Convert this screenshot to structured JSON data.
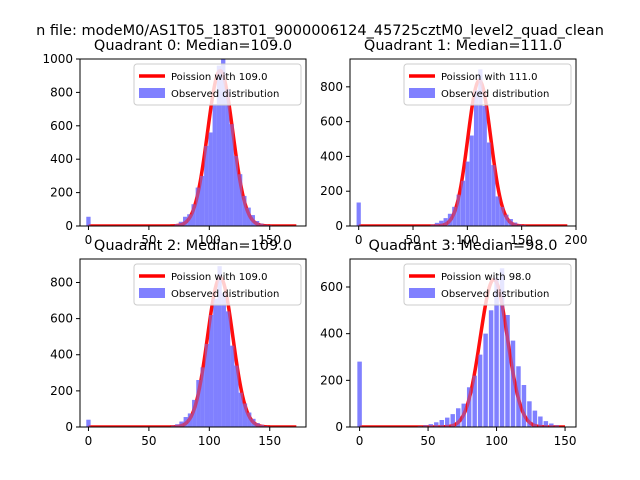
{
  "figure": {
    "suptitle": "n file: modeM0/AS1T05_183T01_9000006124_45725cztM0_level2_quad_clean"
  },
  "chart_data": [
    {
      "type": "histogram",
      "title": "Quadrant 0: Median=109.0",
      "xlim": [
        -7,
        180
      ],
      "ylim": [
        0,
        1000
      ],
      "xticks": [
        0,
        50,
        100,
        150
      ],
      "yticks": [
        0,
        200,
        400,
        600,
        800,
        1000
      ],
      "bin_width": 3.5,
      "outlier_bin": {
        "x": 0,
        "count": 55
      },
      "bins": [
        {
          "x": 73,
          "count": 12
        },
        {
          "x": 76.5,
          "count": 25
        },
        {
          "x": 80,
          "count": 55
        },
        {
          "x": 83.5,
          "count": 70
        },
        {
          "x": 87,
          "count": 130
        },
        {
          "x": 90.5,
          "count": 230
        },
        {
          "x": 94,
          "count": 300
        },
        {
          "x": 97.5,
          "count": 480
        },
        {
          "x": 101,
          "count": 560
        },
        {
          "x": 104.5,
          "count": 730
        },
        {
          "x": 108,
          "count": 960
        },
        {
          "x": 111.5,
          "count": 1000
        },
        {
          "x": 115,
          "count": 820
        },
        {
          "x": 118.5,
          "count": 610
        },
        {
          "x": 122,
          "count": 420
        },
        {
          "x": 125.5,
          "count": 310
        },
        {
          "x": 129,
          "count": 180
        },
        {
          "x": 132.5,
          "count": 110
        },
        {
          "x": 136,
          "count": 65
        },
        {
          "x": 139.5,
          "count": 30
        },
        {
          "x": 143,
          "count": 15
        },
        {
          "x": 146.5,
          "count": 8
        },
        {
          "x": 150,
          "count": 5
        },
        {
          "x": 153.5,
          "count": 3
        }
      ],
      "fit": {
        "mean": 109.0,
        "x_range": [
          0,
          172
        ]
      },
      "legend": [
        "Poission with 109.0",
        "Observed distribution"
      ]
    },
    {
      "type": "histogram",
      "title": "Quadrant 1: Median=111.0",
      "xlim": [
        -8,
        200
      ],
      "ylim": [
        0,
        960
      ],
      "xticks": [
        0,
        50,
        100,
        150,
        200
      ],
      "yticks": [
        0,
        200,
        400,
        600,
        800
      ],
      "bin_width": 3.8,
      "outlier_bin": {
        "x": 0,
        "count": 135
      },
      "bins": [
        {
          "x": 68,
          "count": 8
        },
        {
          "x": 72,
          "count": 18
        },
        {
          "x": 76,
          "count": 30
        },
        {
          "x": 80,
          "count": 45
        },
        {
          "x": 84,
          "count": 70
        },
        {
          "x": 88,
          "count": 110
        },
        {
          "x": 92,
          "count": 180
        },
        {
          "x": 96,
          "count": 260
        },
        {
          "x": 100,
          "count": 370
        },
        {
          "x": 104,
          "count": 520
        },
        {
          "x": 108,
          "count": 780
        },
        {
          "x": 112,
          "count": 900
        },
        {
          "x": 116,
          "count": 690
        },
        {
          "x": 120,
          "count": 480
        },
        {
          "x": 124,
          "count": 350
        },
        {
          "x": 128,
          "count": 170
        },
        {
          "x": 132,
          "count": 110
        },
        {
          "x": 136,
          "count": 65
        },
        {
          "x": 140,
          "count": 40
        },
        {
          "x": 144,
          "count": 20
        },
        {
          "x": 148,
          "count": 10
        },
        {
          "x": 152,
          "count": 6
        },
        {
          "x": 156,
          "count": 3
        }
      ],
      "fit": {
        "mean": 111.0,
        "x_range": [
          0,
          192
        ]
      },
      "legend": [
        "Poission with 111.0",
        "Observed distribution"
      ]
    },
    {
      "type": "histogram",
      "title": "Quadrant 2: Median=109.0",
      "xlim": [
        -7,
        180
      ],
      "ylim": [
        0,
        930
      ],
      "xticks": [
        0,
        50,
        100,
        150
      ],
      "yticks": [
        0,
        200,
        400,
        600,
        800
      ],
      "bin_width": 3.5,
      "outlier_bin": {
        "x": 0,
        "count": 40
      },
      "bins": [
        {
          "x": 70,
          "count": 8
        },
        {
          "x": 73.5,
          "count": 15
        },
        {
          "x": 77,
          "count": 30
        },
        {
          "x": 80.5,
          "count": 55
        },
        {
          "x": 84,
          "count": 75
        },
        {
          "x": 87.5,
          "count": 150
        },
        {
          "x": 91,
          "count": 260
        },
        {
          "x": 94.5,
          "count": 330
        },
        {
          "x": 98,
          "count": 460
        },
        {
          "x": 101.5,
          "count": 620
        },
        {
          "x": 105,
          "count": 710
        },
        {
          "x": 108.5,
          "count": 890
        },
        {
          "x": 112,
          "count": 740
        },
        {
          "x": 115.5,
          "count": 640
        },
        {
          "x": 119,
          "count": 450
        },
        {
          "x": 122.5,
          "count": 340
        },
        {
          "x": 126,
          "count": 190
        },
        {
          "x": 129.5,
          "count": 130
        },
        {
          "x": 133,
          "count": 80
        },
        {
          "x": 136.5,
          "count": 45
        },
        {
          "x": 140,
          "count": 22
        },
        {
          "x": 143.5,
          "count": 12
        },
        {
          "x": 147,
          "count": 6
        },
        {
          "x": 150.5,
          "count": 3
        }
      ],
      "fit": {
        "mean": 109.0,
        "x_range": [
          0,
          172
        ]
      },
      "legend": [
        "Poission with 109.0",
        "Observed distribution"
      ]
    },
    {
      "type": "histogram",
      "title": "Quadrant 3: Median=98.0",
      "xlim": [
        -7,
        158
      ],
      "ylim": [
        0,
        720
      ],
      "xticks": [
        0,
        50,
        100,
        150
      ],
      "yticks": [
        0,
        200,
        400,
        600
      ],
      "bin_width": 3.2,
      "outlier_bin": {
        "x": 0,
        "count": 280
      },
      "bins": [
        {
          "x": 44,
          "count": 4
        },
        {
          "x": 48,
          "count": 8
        },
        {
          "x": 52,
          "count": 12
        },
        {
          "x": 56,
          "count": 20
        },
        {
          "x": 60,
          "count": 30
        },
        {
          "x": 64,
          "count": 40
        },
        {
          "x": 68,
          "count": 55
        },
        {
          "x": 72,
          "count": 80
        },
        {
          "x": 76,
          "count": 100
        },
        {
          "x": 80,
          "count": 170
        },
        {
          "x": 84,
          "count": 220
        },
        {
          "x": 88,
          "count": 310
        },
        {
          "x": 92,
          "count": 400
        },
        {
          "x": 96,
          "count": 500
        },
        {
          "x": 100,
          "count": 640
        },
        {
          "x": 104,
          "count": 680
        },
        {
          "x": 108,
          "count": 480
        },
        {
          "x": 112,
          "count": 370
        },
        {
          "x": 116,
          "count": 260
        },
        {
          "x": 120,
          "count": 180
        },
        {
          "x": 124,
          "count": 110
        },
        {
          "x": 128,
          "count": 70
        },
        {
          "x": 132,
          "count": 45
        },
        {
          "x": 136,
          "count": 25
        },
        {
          "x": 140,
          "count": 15
        },
        {
          "x": 144,
          "count": 8
        }
      ],
      "fit": {
        "mean": 98.0,
        "x_range": [
          0,
          150
        ]
      },
      "legend": [
        "Poission with 98.0",
        "Observed distribution"
      ]
    }
  ],
  "colors": {
    "fit_line": "#ff0000",
    "bars": "#8080ff",
    "axes": "#000000",
    "legend_border": "#cccccc"
  }
}
